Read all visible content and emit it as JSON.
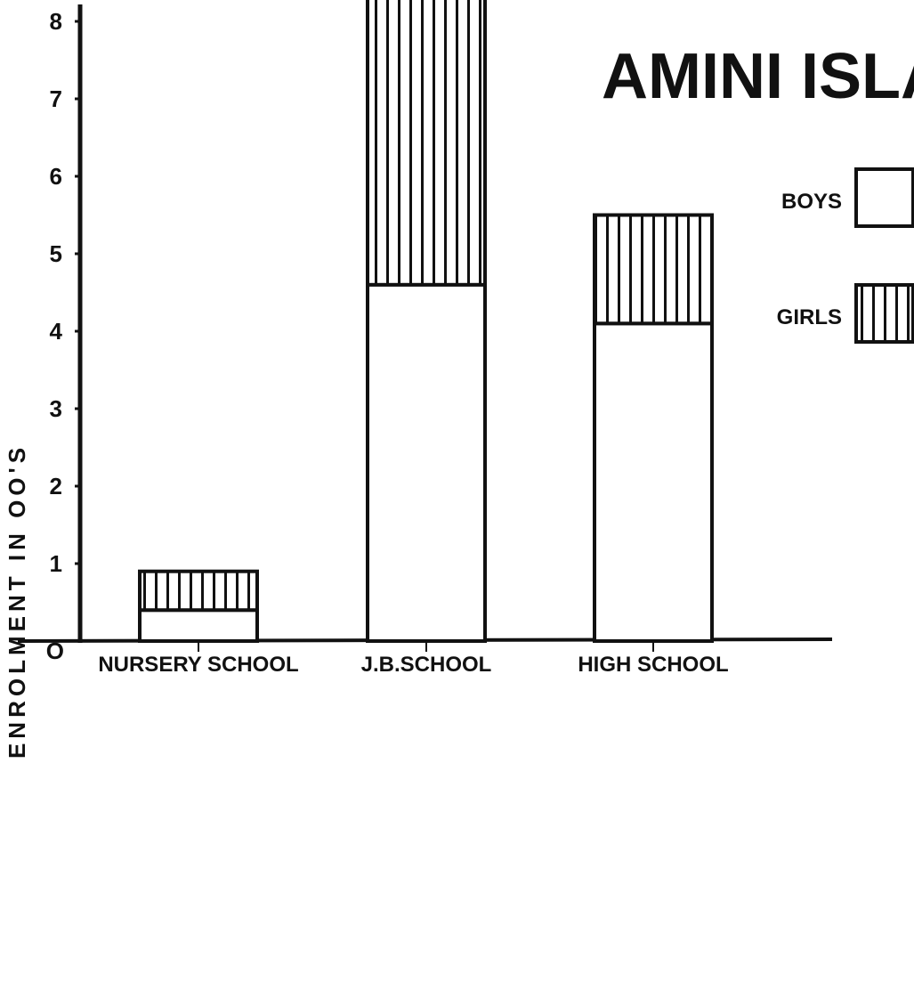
{
  "chart_data": {
    "type": "bar",
    "stacked": true,
    "title": "AMINI ISLAND",
    "xlabel": "",
    "ylabel": "ENROLMENT IN OO'S",
    "ylim": [
      0,
      8.5
    ],
    "yticks": [
      0,
      1,
      2,
      3,
      4,
      5,
      6,
      7,
      8
    ],
    "ytick_labels": [
      "O",
      "1",
      "2",
      "3",
      "4",
      "5",
      "6",
      "7",
      "8"
    ],
    "categories": [
      "NURSERY SCHOOL",
      "J.B.SCHOOL",
      "HIGH SCHOOL"
    ],
    "series": [
      {
        "name": "BOYS",
        "values": [
          0.4,
          4.6,
          4.1
        ],
        "pattern": "blank"
      },
      {
        "name": "GIRLS",
        "values": [
          0.5,
          3.9,
          1.4
        ],
        "pattern": "vertical-hatch"
      }
    ],
    "legend_position": "top-right",
    "grid": false
  }
}
